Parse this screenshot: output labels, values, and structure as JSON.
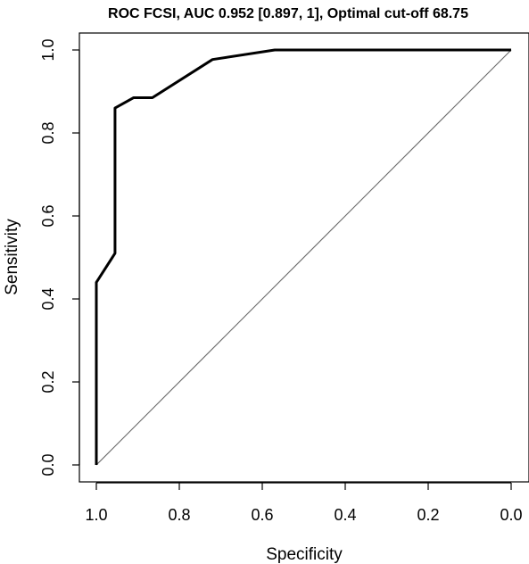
{
  "chart_data": {
    "type": "line",
    "title": "ROC FCSI, AUC 0.952 [0.897, 1], Optimal cut-off 68.75",
    "xlabel": "Specificity",
    "ylabel": "Sensitivity",
    "xlim": [
      1.0,
      0.0
    ],
    "ylim": [
      0.0,
      1.0
    ],
    "x_reversed": true,
    "grid": false,
    "x_ticks": [
      1.0,
      0.8,
      0.6,
      0.4,
      0.2,
      0.0
    ],
    "x_tick_labels": [
      "1.0",
      "0.8",
      "0.6",
      "0.4",
      "0.2",
      "0.0"
    ],
    "y_ticks": [
      0.0,
      0.2,
      0.4,
      0.6,
      0.8,
      1.0
    ],
    "y_tick_labels": [
      "0.0",
      "0.2",
      "0.4",
      "0.6",
      "0.8",
      "1.0"
    ],
    "series": [
      {
        "color": "#000000",
        "x": [
          1.0,
          1.0,
          0.955,
          0.955,
          0.91,
          0.865,
          0.72,
          0.57,
          0.0
        ],
        "y": [
          0.0,
          0.44,
          0.51,
          0.86,
          0.885,
          0.885,
          0.977,
          1.0,
          1.0
        ]
      }
    ],
    "reference_line": {
      "color": "#666666",
      "x": [
        1.0,
        0.0
      ],
      "y": [
        0.0,
        1.0
      ]
    }
  }
}
